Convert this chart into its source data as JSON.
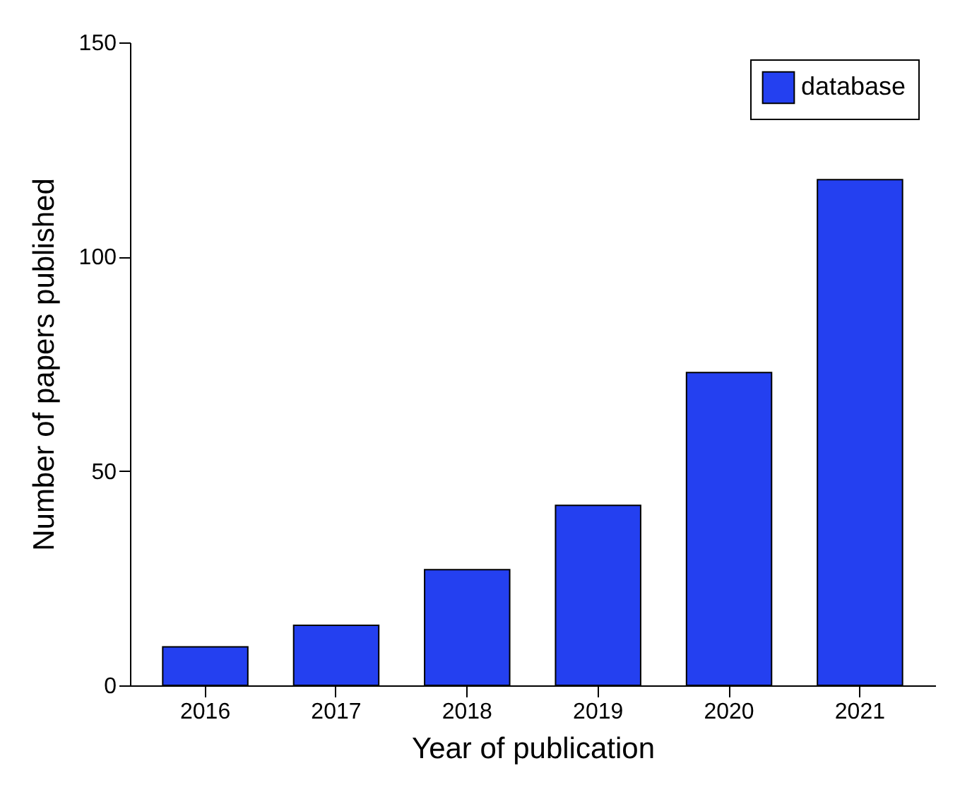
{
  "chart_data": {
    "type": "bar",
    "xlabel": "Year of publication",
    "ylabel": "Number of papers published",
    "categories": [
      "2016",
      "2017",
      "2018",
      "2019",
      "2020",
      "2021"
    ],
    "series": [
      {
        "name": "database",
        "color": "#2440f0",
        "values": [
          9,
          14,
          27,
          42,
          73,
          118
        ]
      }
    ],
    "ylim": [
      0,
      150
    ],
    "yticks": [
      0,
      50,
      100,
      150
    ],
    "grid": false,
    "legend": "top right"
  }
}
